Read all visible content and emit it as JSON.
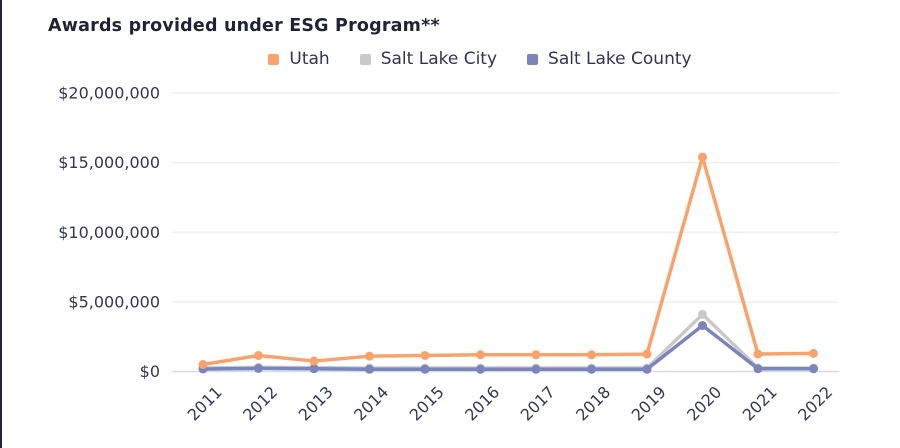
{
  "chart_data": {
    "type": "line",
    "title": "Awards provided under ESG Program**",
    "categories": [
      "2011",
      "2012",
      "2013",
      "2014",
      "2015",
      "2016",
      "2017",
      "2018",
      "2019",
      "2020",
      "2021",
      "2022"
    ],
    "series": [
      {
        "name": "Utah",
        "color": "#F8A36C",
        "z": 3,
        "values": [
          500000,
          1150000,
          750000,
          1100000,
          1150000,
          1200000,
          1200000,
          1200000,
          1250000,
          15400000,
          1250000,
          1300000
        ]
      },
      {
        "name": "Salt Lake City",
        "color": "#C9C9C9",
        "z": 1,
        "values": [
          250000,
          300000,
          280000,
          250000,
          250000,
          250000,
          250000,
          250000,
          250000,
          4100000,
          250000,
          250000
        ]
      },
      {
        "name": "Salt Lake County",
        "color": "#7B85BB",
        "z": 2,
        "values": [
          180000,
          220000,
          200000,
          160000,
          160000,
          160000,
          160000,
          160000,
          160000,
          3300000,
          200000,
          200000
        ]
      }
    ],
    "y_ticks": [
      {
        "label": "$0",
        "value": 0
      },
      {
        "label": "$5,000,000",
        "value": 5000000
      },
      {
        "label": "$10,000,000",
        "value": 10000000
      },
      {
        "label": "$15,000,000",
        "value": 15000000
      },
      {
        "label": "$20,000,000",
        "value": 20000000
      }
    ],
    "ylim": [
      0,
      20000000
    ],
    "grid": true,
    "legend_position": "top",
    "xlabel": "",
    "ylabel": ""
  },
  "colors": {
    "axis_text": "#33365A",
    "title_text": "#1F2335",
    "gridline": "#ECECEC",
    "baseline": "#D7D9E5",
    "background": "#FFFFFF",
    "left_border": "#26262E"
  }
}
